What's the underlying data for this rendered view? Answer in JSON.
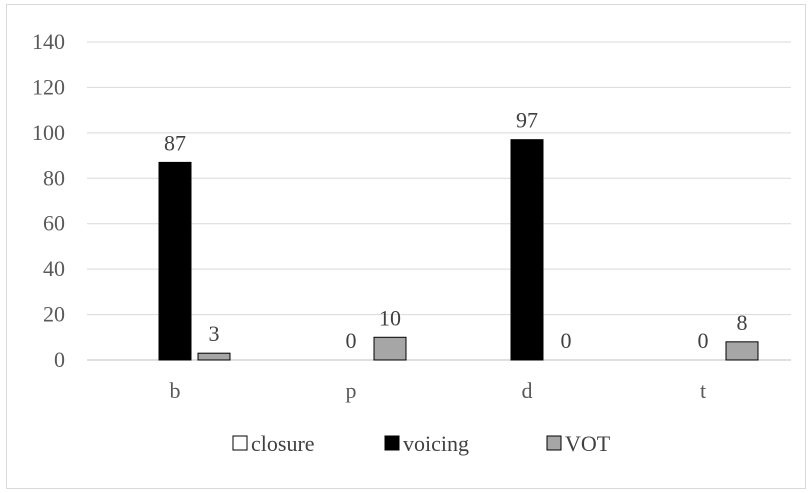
{
  "chart_data": {
    "type": "bar",
    "categories": [
      "b",
      "p",
      "d",
      "t"
    ],
    "series": [
      {
        "name": "closure",
        "values": [
          0,
          0,
          0,
          0
        ],
        "color": "#ffffff",
        "stroke": "#000000"
      },
      {
        "name": "voicing",
        "values": [
          87,
          0,
          97,
          0
        ],
        "color": "#000000",
        "stroke": "#000000"
      },
      {
        "name": "VOT",
        "values": [
          3,
          10,
          0,
          8
        ],
        "color": "#a6a6a6",
        "stroke": "#000000"
      }
    ],
    "data_labels": [
      {
        "category": "b",
        "series": "voicing",
        "text": "87"
      },
      {
        "category": "b",
        "series": "VOT",
        "text": "3"
      },
      {
        "category": "p",
        "series": "voicing",
        "text": "0"
      },
      {
        "category": "p",
        "series": "VOT",
        "text": "10"
      },
      {
        "category": "d",
        "series": "voicing",
        "text": "97"
      },
      {
        "category": "d",
        "series": "VOT",
        "text": "0"
      },
      {
        "category": "t",
        "series": "voicing",
        "text": "0"
      },
      {
        "category": "t",
        "series": "VOT",
        "text": "8"
      }
    ],
    "y_ticks": [
      "0",
      "20",
      "40",
      "60",
      "80",
      "100",
      "120",
      "140"
    ],
    "ylim": [
      0,
      140
    ],
    "grid": true,
    "legend": "bottom",
    "gridline_color": "#d9d9d9",
    "axis_color": "#bfbfbf"
  }
}
